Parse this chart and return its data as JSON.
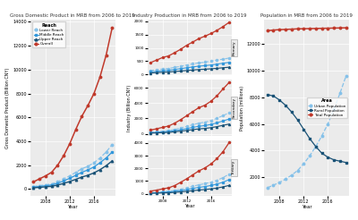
{
  "years": [
    2006,
    2007,
    2008,
    2009,
    2010,
    2011,
    2012,
    2013,
    2014,
    2015,
    2016,
    2017,
    2018,
    2019
  ],
  "gdp": {
    "lower_reach": [
      200,
      280,
      350,
      420,
      600,
      850,
      1100,
      1400,
      1700,
      1900,
      2200,
      2600,
      3100,
      3700
    ],
    "middle_reach": [
      150,
      210,
      270,
      340,
      480,
      680,
      900,
      1150,
      1400,
      1600,
      1850,
      2200,
      2600,
      3100
    ],
    "upper_reach": [
      100,
      140,
      180,
      230,
      330,
      470,
      630,
      810,
      1000,
      1150,
      1350,
      1620,
      1950,
      2350
    ],
    "overall": [
      600,
      850,
      1100,
      1400,
      2000,
      2800,
      3800,
      5000,
      6100,
      7000,
      8000,
      9400,
      11200,
      13500
    ]
  },
  "industry": {
    "primary": {
      "lower_reach": [
        150,
        180,
        210,
        230,
        270,
        310,
        360,
        400,
        440,
        470,
        500,
        540,
        580,
        620
      ],
      "middle_reach": [
        100,
        120,
        145,
        160,
        190,
        220,
        255,
        285,
        315,
        335,
        360,
        390,
        425,
        460
      ],
      "upper_reach": [
        60,
        72,
        87,
        96,
        114,
        132,
        153,
        171,
        189,
        201,
        216,
        234,
        255,
        276
      ],
      "overall": [
        450,
        540,
        640,
        700,
        820,
        950,
        1100,
        1220,
        1350,
        1440,
        1540,
        1660,
        1800,
        1960
      ]
    },
    "secondary": {
      "lower_reach": [
        200,
        270,
        350,
        420,
        570,
        760,
        970,
        1180,
        1390,
        1520,
        1730,
        2020,
        2380,
        2720
      ],
      "middle_reach": [
        140,
        190,
        245,
        295,
        400,
        533,
        680,
        830,
        980,
        1070,
        1220,
        1425,
        1680,
        1920
      ],
      "upper_reach": [
        90,
        120,
        157,
        190,
        260,
        348,
        445,
        542,
        640,
        700,
        800,
        935,
        1105,
        1265
      ],
      "overall": [
        480,
        650,
        840,
        1010,
        1380,
        1840,
        2360,
        2890,
        3400,
        3720,
        4240,
        4950,
        5840,
        6680
      ]
    },
    "tertiary": {
      "lower_reach": [
        80,
        110,
        150,
        185,
        255,
        355,
        460,
        580,
        700,
        790,
        910,
        1060,
        1270,
        1540
      ],
      "middle_reach": [
        55,
        76,
        105,
        130,
        179,
        249,
        322,
        408,
        494,
        558,
        645,
        755,
        908,
        1102
      ],
      "upper_reach": [
        30,
        42,
        58,
        72,
        100,
        140,
        185,
        235,
        287,
        325,
        378,
        443,
        534,
        650
      ],
      "overall": [
        200,
        275,
        375,
        460,
        635,
        898,
        1175,
        1485,
        1800,
        2030,
        2345,
        2770,
        3320,
        4030
      ]
    }
  },
  "population": {
    "urban": [
      1200,
      1400,
      1600,
      1850,
      2150,
      2500,
      3000,
      3600,
      4300,
      5100,
      6000,
      7100,
      8300,
      9600
    ],
    "rural": [
      8200,
      8100,
      7800,
      7400,
      6900,
      6300,
      5600,
      4900,
      4300,
      3800,
      3500,
      3300,
      3200,
      3100
    ],
    "total": [
      13000,
      13050,
      13080,
      13100,
      13120,
      13140,
      13150,
      13160,
      13170,
      13180,
      13190,
      13200,
      13210,
      13220
    ]
  },
  "colors": {
    "lower_reach": "#85C1E9",
    "middle_reach": "#3498DB",
    "upper_reach": "#1A5276",
    "overall": "#C0392B",
    "urban": "#85C1E9",
    "rural": "#1A5276",
    "total": "#C0392B"
  },
  "bg_color": "#EBEBEB",
  "title_gdp": "Gross Domestic Product in MRB from 2006 to 2019",
  "title_industry": "Industry Production in MRB from 2006 to 2019",
  "title_population": "Population in MRB from 2006 to 2019",
  "xlabel": "Year",
  "ylabel_gdp": "Gross Domestic Product (Billion CNY)",
  "ylabel_industry": "Industry (Billion CNY)",
  "ylabel_population": "Population (millions)",
  "facet_labels": [
    "Primary",
    "Secondary",
    "Tertiary"
  ],
  "legend_reach_labels": [
    "Lower Reach",
    "Middle Reach",
    "Upper Reach",
    "Overall"
  ],
  "legend_area_labels": [
    "Urban Population",
    "Rural Population",
    "Total Population"
  ]
}
